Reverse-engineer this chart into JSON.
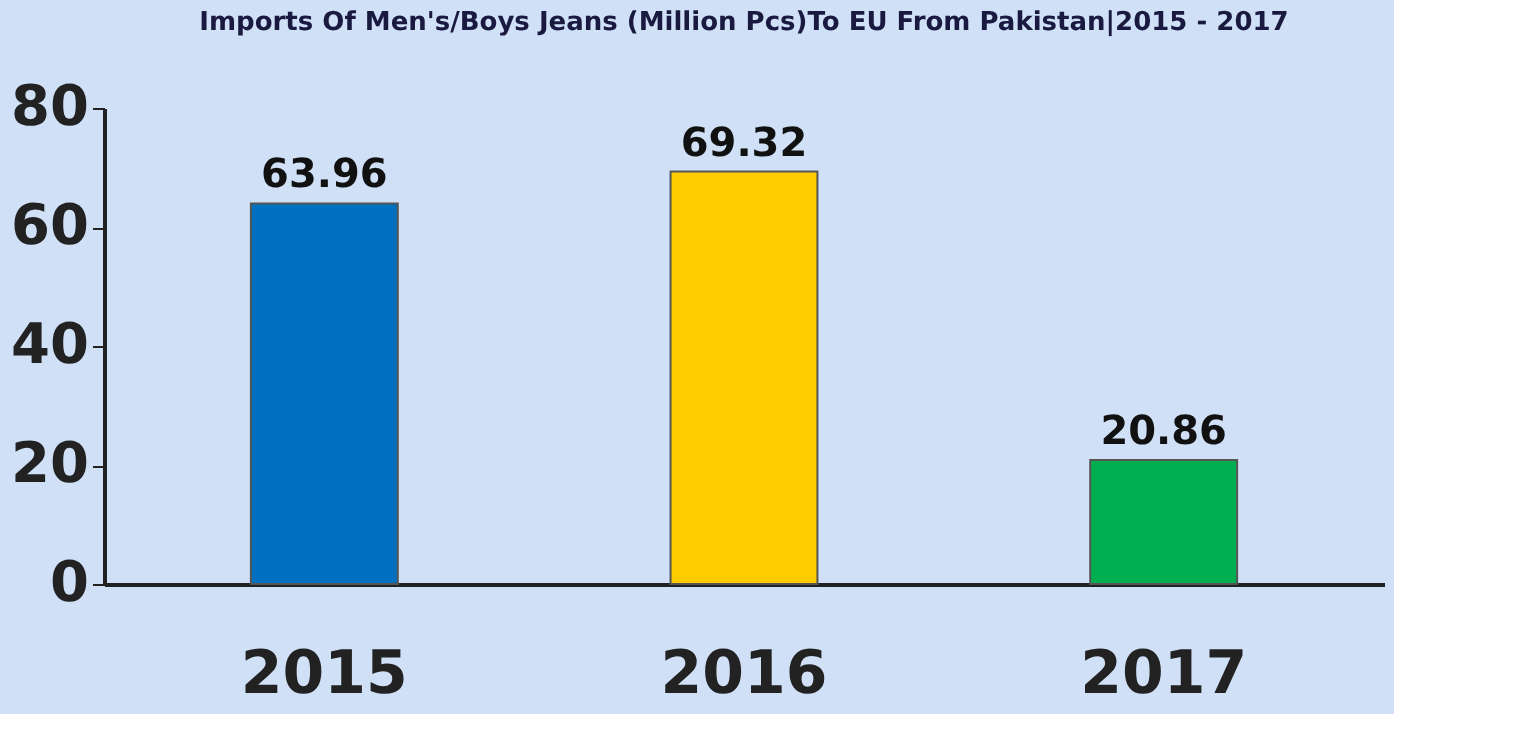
{
  "chart_data": {
    "type": "bar",
    "title": "Imports Of Men's/Boys Jeans (Million Pcs)To EU From Pakistan|2015 - 2017",
    "categories": [
      "2015",
      "2016",
      "2017"
    ],
    "values": [
      63.96,
      69.32,
      20.86
    ],
    "colors": [
      "#0070c0",
      "#ffcc00",
      "#00b050"
    ],
    "ylim": [
      0,
      80
    ],
    "yticks": [
      0,
      20,
      40,
      60,
      80
    ],
    "grid": false,
    "data_labels": true
  }
}
